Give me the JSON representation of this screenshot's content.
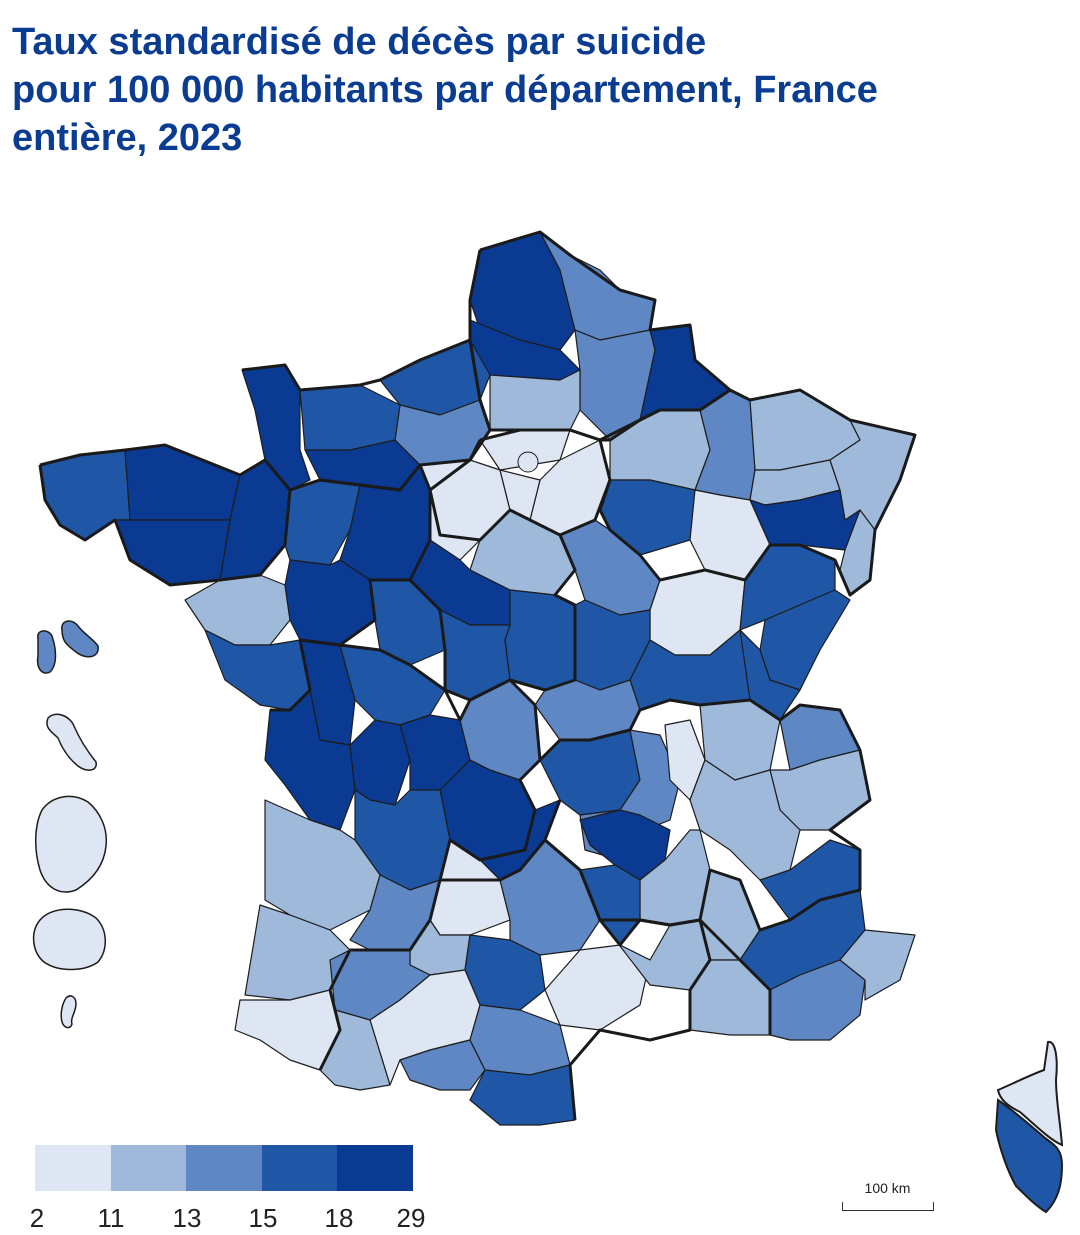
{
  "title_lines": [
    "Taux standardisé de décès par suicide",
    "pour 100 000 habitants par département, France",
    "entière, 2023"
  ],
  "legend": {
    "breaks": [
      "2",
      "11",
      "13",
      "15",
      "18",
      "29"
    ],
    "colors": [
      "#dde6f2",
      "#9fb9da",
      "#5e87c3",
      "#1f57a6",
      "#0a3a91"
    ]
  },
  "scale_label": "100 km"
}
